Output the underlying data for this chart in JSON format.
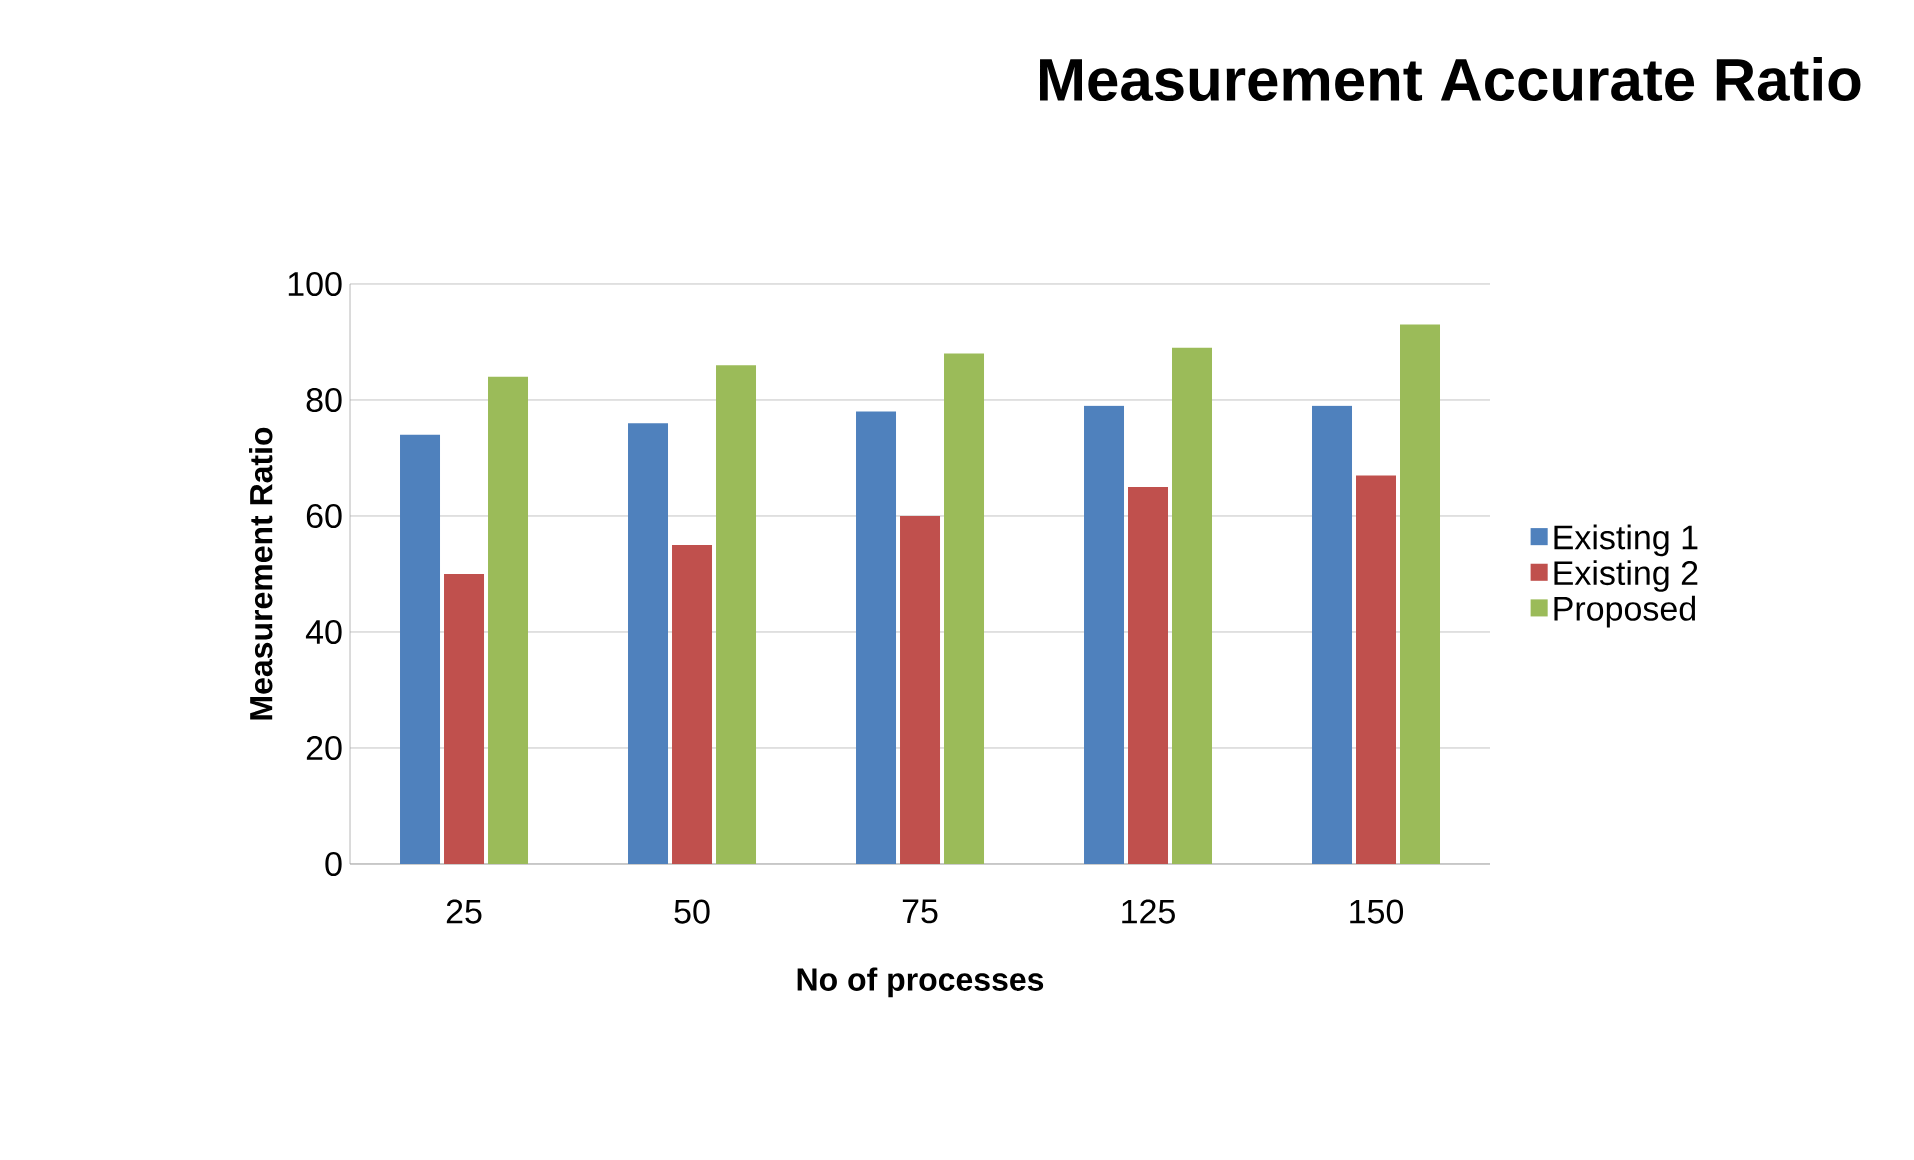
{
  "chart_data": {
    "type": "bar",
    "title": "Measurement Accurate Ratio",
    "xlabel": "No of processes",
    "ylabel": "Measurement Ratio",
    "categories": [
      "25",
      "50",
      "75",
      "125",
      "150"
    ],
    "series": [
      {
        "name": "Existing 1",
        "color": "#4f81bd",
        "values": [
          74,
          76,
          78,
          79,
          79
        ]
      },
      {
        "name": "Existing 2",
        "color": "#c0504d",
        "values": [
          50,
          55,
          60,
          65,
          67
        ]
      },
      {
        "name": "Proposed",
        "color": "#9bbb59",
        "values": [
          84,
          86,
          88,
          89,
          93
        ]
      }
    ],
    "ylim": [
      0,
      100
    ],
    "yticks": [
      0,
      20,
      40,
      60,
      80,
      100
    ],
    "grid": "y",
    "legend": "right"
  }
}
